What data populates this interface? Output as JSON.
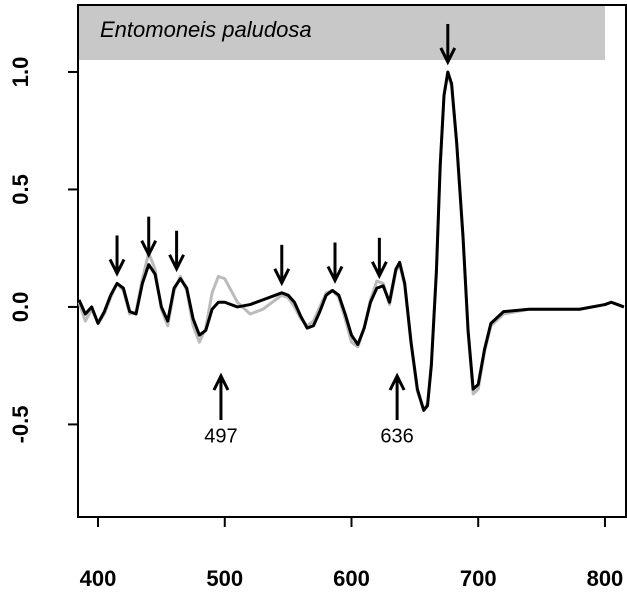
{
  "chart_data": {
    "type": "line",
    "title": "Entomoneis paludosa",
    "x": [
      385,
      390,
      395,
      400,
      405,
      410,
      415,
      420,
      425,
      430,
      435,
      440,
      445,
      450,
      455,
      460,
      465,
      470,
      475,
      480,
      485,
      490,
      495,
      500,
      510,
      520,
      530,
      540,
      545,
      550,
      555,
      560,
      565,
      570,
      575,
      580,
      585,
      590,
      595,
      600,
      605,
      610,
      615,
      620,
      625,
      630,
      635,
      638,
      642,
      647,
      652,
      657,
      660,
      663,
      667,
      670,
      673,
      676,
      679,
      683,
      688,
      692,
      696,
      700,
      705,
      710,
      720,
      740,
      760,
      780,
      800,
      805,
      810,
      815
    ],
    "series": [
      {
        "name": "gray",
        "color": "#bbbbbb",
        "values": [
          0.02,
          -0.06,
          -0.01,
          -0.07,
          -0.03,
          0.04,
          0.1,
          0.07,
          -0.03,
          -0.02,
          0.12,
          0.23,
          0.16,
          -0.01,
          -0.08,
          0.07,
          0.13,
          0.07,
          -0.08,
          -0.15,
          -0.09,
          0.06,
          0.13,
          0.12,
          0.02,
          -0.03,
          -0.01,
          0.03,
          0.05,
          0.04,
          0.0,
          -0.05,
          -0.08,
          -0.06,
          0.0,
          0.06,
          0.07,
          0.04,
          -0.05,
          -0.15,
          -0.17,
          -0.09,
          0.03,
          0.11,
          0.1,
          0.01,
          0.15,
          0.18,
          0.09,
          -0.16,
          -0.36,
          -0.44,
          -0.41,
          -0.24,
          0.16,
          0.61,
          0.9,
          0.99,
          0.94,
          0.69,
          0.29,
          -0.11,
          -0.37,
          -0.35,
          -0.19,
          -0.08,
          -0.03,
          -0.01,
          -0.01,
          -0.01,
          0.01,
          0.02,
          0.01,
          0.0
        ]
      },
      {
        "name": "black",
        "color": "#000000",
        "values": [
          0.03,
          -0.03,
          0.0,
          -0.07,
          -0.02,
          0.05,
          0.1,
          0.08,
          -0.02,
          -0.03,
          0.1,
          0.18,
          0.14,
          0.0,
          -0.06,
          0.08,
          0.12,
          0.08,
          -0.05,
          -0.12,
          -0.1,
          -0.01,
          0.02,
          0.02,
          0.0,
          0.01,
          0.03,
          0.05,
          0.06,
          0.05,
          0.02,
          -0.04,
          -0.09,
          -0.08,
          -0.02,
          0.05,
          0.07,
          0.05,
          -0.03,
          -0.12,
          -0.16,
          -0.09,
          0.02,
          0.08,
          0.09,
          0.02,
          0.16,
          0.19,
          0.1,
          -0.15,
          -0.35,
          -0.44,
          -0.42,
          -0.25,
          0.15,
          0.6,
          0.9,
          1.0,
          0.95,
          0.7,
          0.3,
          -0.1,
          -0.35,
          -0.33,
          -0.18,
          -0.07,
          -0.02,
          -0.01,
          -0.01,
          -0.01,
          0.01,
          0.02,
          0.01,
          0.0
        ]
      }
    ],
    "peak_arrows": [
      415,
      440,
      462,
      545,
      587,
      622,
      676
    ],
    "annotations": [
      {
        "text": "497",
        "x": 497
      },
      {
        "text": "636",
        "x": 636
      }
    ],
    "xlim": [
      384.2,
      817.4
    ],
    "xticks": [
      400,
      500,
      600,
      700,
      800
    ],
    "ylim": [
      -0.894,
      1.285
    ],
    "yticks": [
      {
        "value": -0.5,
        "label": "-0.5"
      },
      {
        "value": 0,
        "label": "0.0"
      },
      {
        "value": 0.5,
        "label": "0.5"
      },
      {
        "value": 1,
        "label": "1.0"
      }
    ]
  }
}
